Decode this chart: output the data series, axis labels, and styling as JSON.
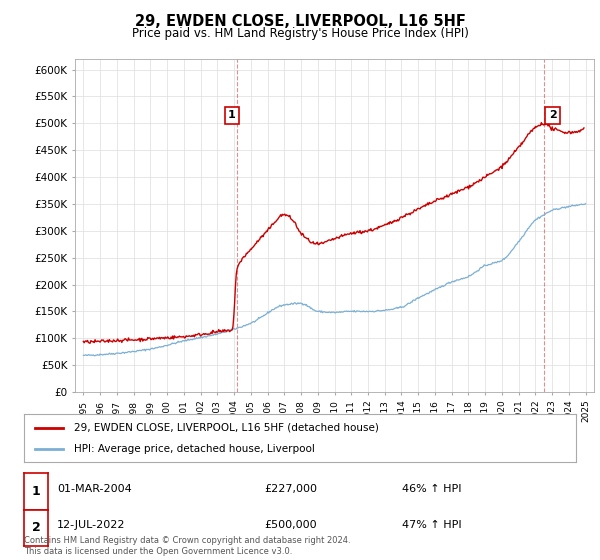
{
  "title": "29, EWDEN CLOSE, LIVERPOOL, L16 5HF",
  "subtitle": "Price paid vs. HM Land Registry's House Price Index (HPI)",
  "ylim": [
    0,
    620000
  ],
  "yticks": [
    0,
    50000,
    100000,
    150000,
    200000,
    250000,
    300000,
    350000,
    400000,
    450000,
    500000,
    550000,
    600000
  ],
  "xlim_start": 1994.5,
  "xlim_end": 2025.5,
  "property_label": "29, EWDEN CLOSE, LIVERPOOL, L16 5HF (detached house)",
  "hpi_label": "HPI: Average price, detached house, Liverpool",
  "property_color": "#cc0000",
  "hpi_color": "#7bafd4",
  "annotation1_num": "1",
  "annotation1_date": "01-MAR-2004",
  "annotation1_price": "£227,000",
  "annotation1_hpi": "46% ↑ HPI",
  "annotation1_year": 2004.17,
  "annotation1_value": 227000,
  "annotation2_num": "2",
  "annotation2_date": "12-JUL-2022",
  "annotation2_price": "£500,000",
  "annotation2_hpi": "47% ↑ HPI",
  "annotation2_year": 2022.53,
  "annotation2_value": 500000,
  "footer": "Contains HM Land Registry data © Crown copyright and database right 2024.\nThis data is licensed under the Open Government Licence v3.0.",
  "background_color": "#ffffff",
  "grid_color": "#dddddd"
}
